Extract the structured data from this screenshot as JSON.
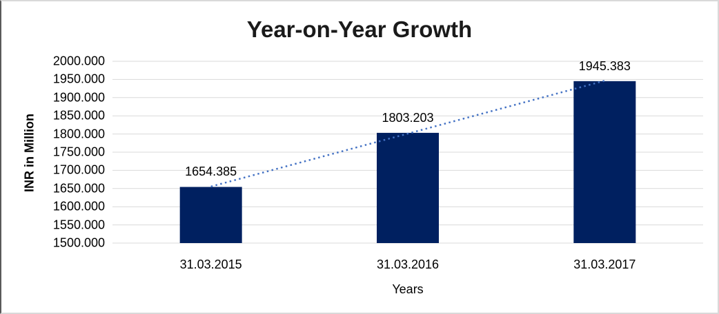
{
  "frame": {
    "border_color": "#d9d9d9",
    "border_left_color": "#595959",
    "background": "#ffffff"
  },
  "chart_data": {
    "type": "bar",
    "title": "Year-on-Year Growth",
    "xlabel": "Years",
    "ylabel": "INR in Million",
    "categories": [
      "31.03.2015",
      "31.03.2016",
      "31.03.2017"
    ],
    "series": [
      {
        "name": "INR in Million",
        "values": [
          1654.385,
          1803.203,
          1945.383
        ]
      }
    ],
    "data_labels": [
      "1654.385",
      "1803.203",
      "1945.383"
    ],
    "ylim": [
      1500,
      2000
    ],
    "ytick_step": 50,
    "ytick_labels": [
      "1500.000",
      "1550.000",
      "1600.000",
      "1650.000",
      "1700.000",
      "1750.000",
      "1800.000",
      "1850.000",
      "1900.000",
      "1950.000",
      "2000.000"
    ],
    "grid": "horizontal",
    "legend": "none",
    "trendline": {
      "type": "linear",
      "line_style": "dotted",
      "color": "#4472C4",
      "fit_values": [
        1655.491,
        1800.99,
        1946.489
      ]
    },
    "colors": {
      "bar": "#002060",
      "gridline": "#D9D9D9",
      "text": "#000000",
      "background": "#FFFFFF"
    }
  }
}
